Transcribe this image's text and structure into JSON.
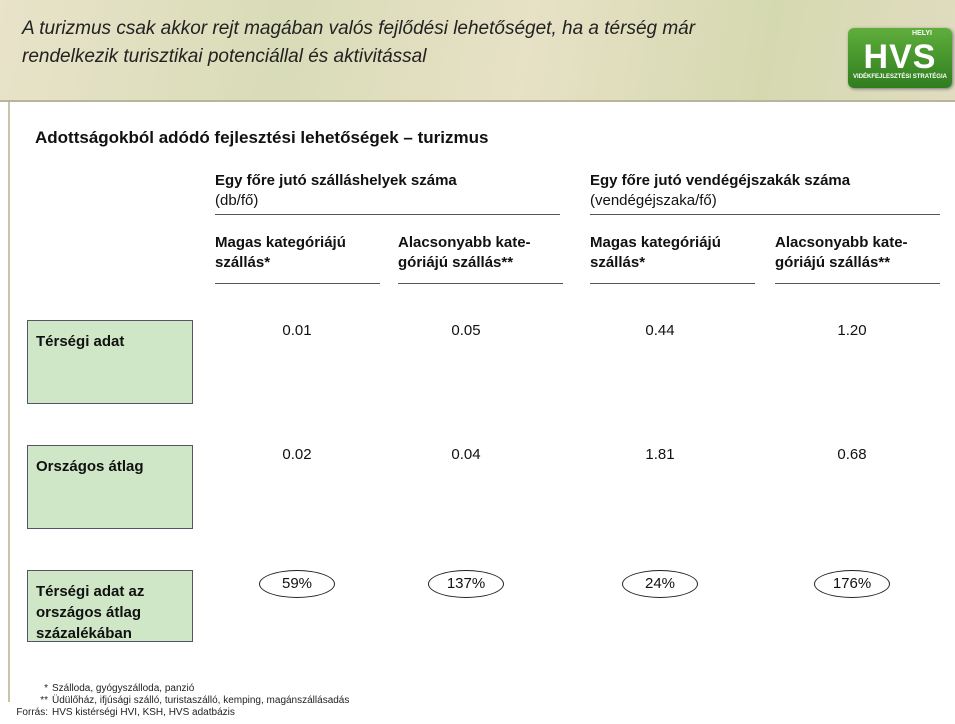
{
  "header": {
    "title_lines": [
      "A turizmus csak akkor rejt magában valós fejlődési lehetőséget, ha a térség már",
      "rendelkezik turisztikai potenciállal és aktivitással"
    ],
    "logo": {
      "text": "HVS",
      "tag": "HELYI",
      "caption": "VIDÉKFEJLESZTÉSI STRATÉGIA"
    }
  },
  "subtitle": "Adottságokból adódó fejlesztési lehetőségek – turizmus",
  "table": {
    "groups": [
      {
        "title": "Egy főre jutó szálláshelyek száma",
        "unit": "(db/fő)"
      },
      {
        "title": "Egy főre jutó vendégéjszakák száma",
        "unit": "(vendégéjszaka/fő)"
      }
    ],
    "columns": [
      [
        "Magas kategóriájú",
        "szállás*"
      ],
      [
        "Alacsonyabb kate-",
        "góriájú szállás**"
      ],
      [
        "Magas kategóriájú",
        "szállás*"
      ],
      [
        "Alacsonyabb kate-",
        "góriájú szállás**"
      ]
    ],
    "rows": [
      {
        "label": [
          "Térségi adat"
        ],
        "values": [
          "0.01",
          "0.05",
          "0.44",
          "1.20"
        ]
      },
      {
        "label": [
          "Országos átlag"
        ],
        "values": [
          "0.02",
          "0.04",
          "1.81",
          "0.68"
        ]
      },
      {
        "label": [
          "Térségi adat az",
          "országos átlag",
          "százalékában"
        ],
        "values": [
          "59%",
          "137%",
          "24%",
          "176%"
        ]
      }
    ]
  },
  "footnotes": [
    {
      "mark": "*",
      "text": "Szálloda, gyógyszálloda, panzió"
    },
    {
      "mark": "**",
      "text": "Üdülőház, ifjúsági szálló, turistaszálló, kemping, magánszállásadás"
    },
    {
      "mark": "Forrás:",
      "text": "HVS kistérségi HVI, KSH, HVS adatbázis"
    }
  ]
}
